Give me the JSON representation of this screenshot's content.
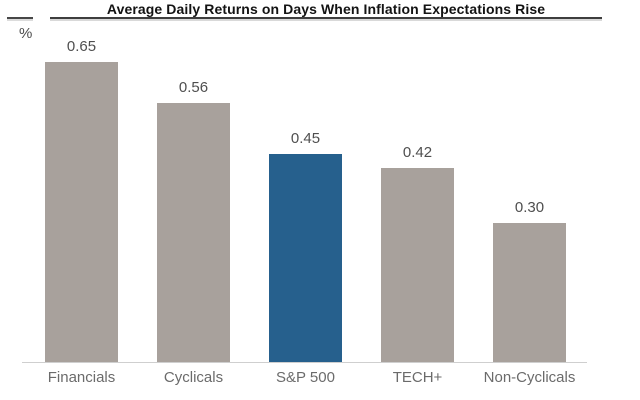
{
  "chart_data": {
    "type": "bar",
    "title": "Average Daily Returns on Days When Inflation Expectations Rise",
    "unit_label": "%",
    "categories": [
      "Financials",
      "Cyclicals",
      "S&P 500",
      "TECH+",
      "Non-Cyclicals"
    ],
    "values": [
      0.65,
      0.56,
      0.45,
      0.42,
      0.3
    ],
    "value_labels": [
      "0.65",
      "0.56",
      "0.45",
      "0.42",
      "0.30"
    ],
    "highlight_index": 2,
    "highlight_category": "S&P 500",
    "colors": {
      "bar": "#a8a19c",
      "highlight": "#26608d",
      "title": "#131313",
      "value_label": "#4f4f4f",
      "category_label": "#6b6b6b",
      "baseline": "#cfcfcf"
    },
    "ylim": [
      0,
      0.7
    ],
    "grid": false,
    "legend": false,
    "data_labels": true
  }
}
